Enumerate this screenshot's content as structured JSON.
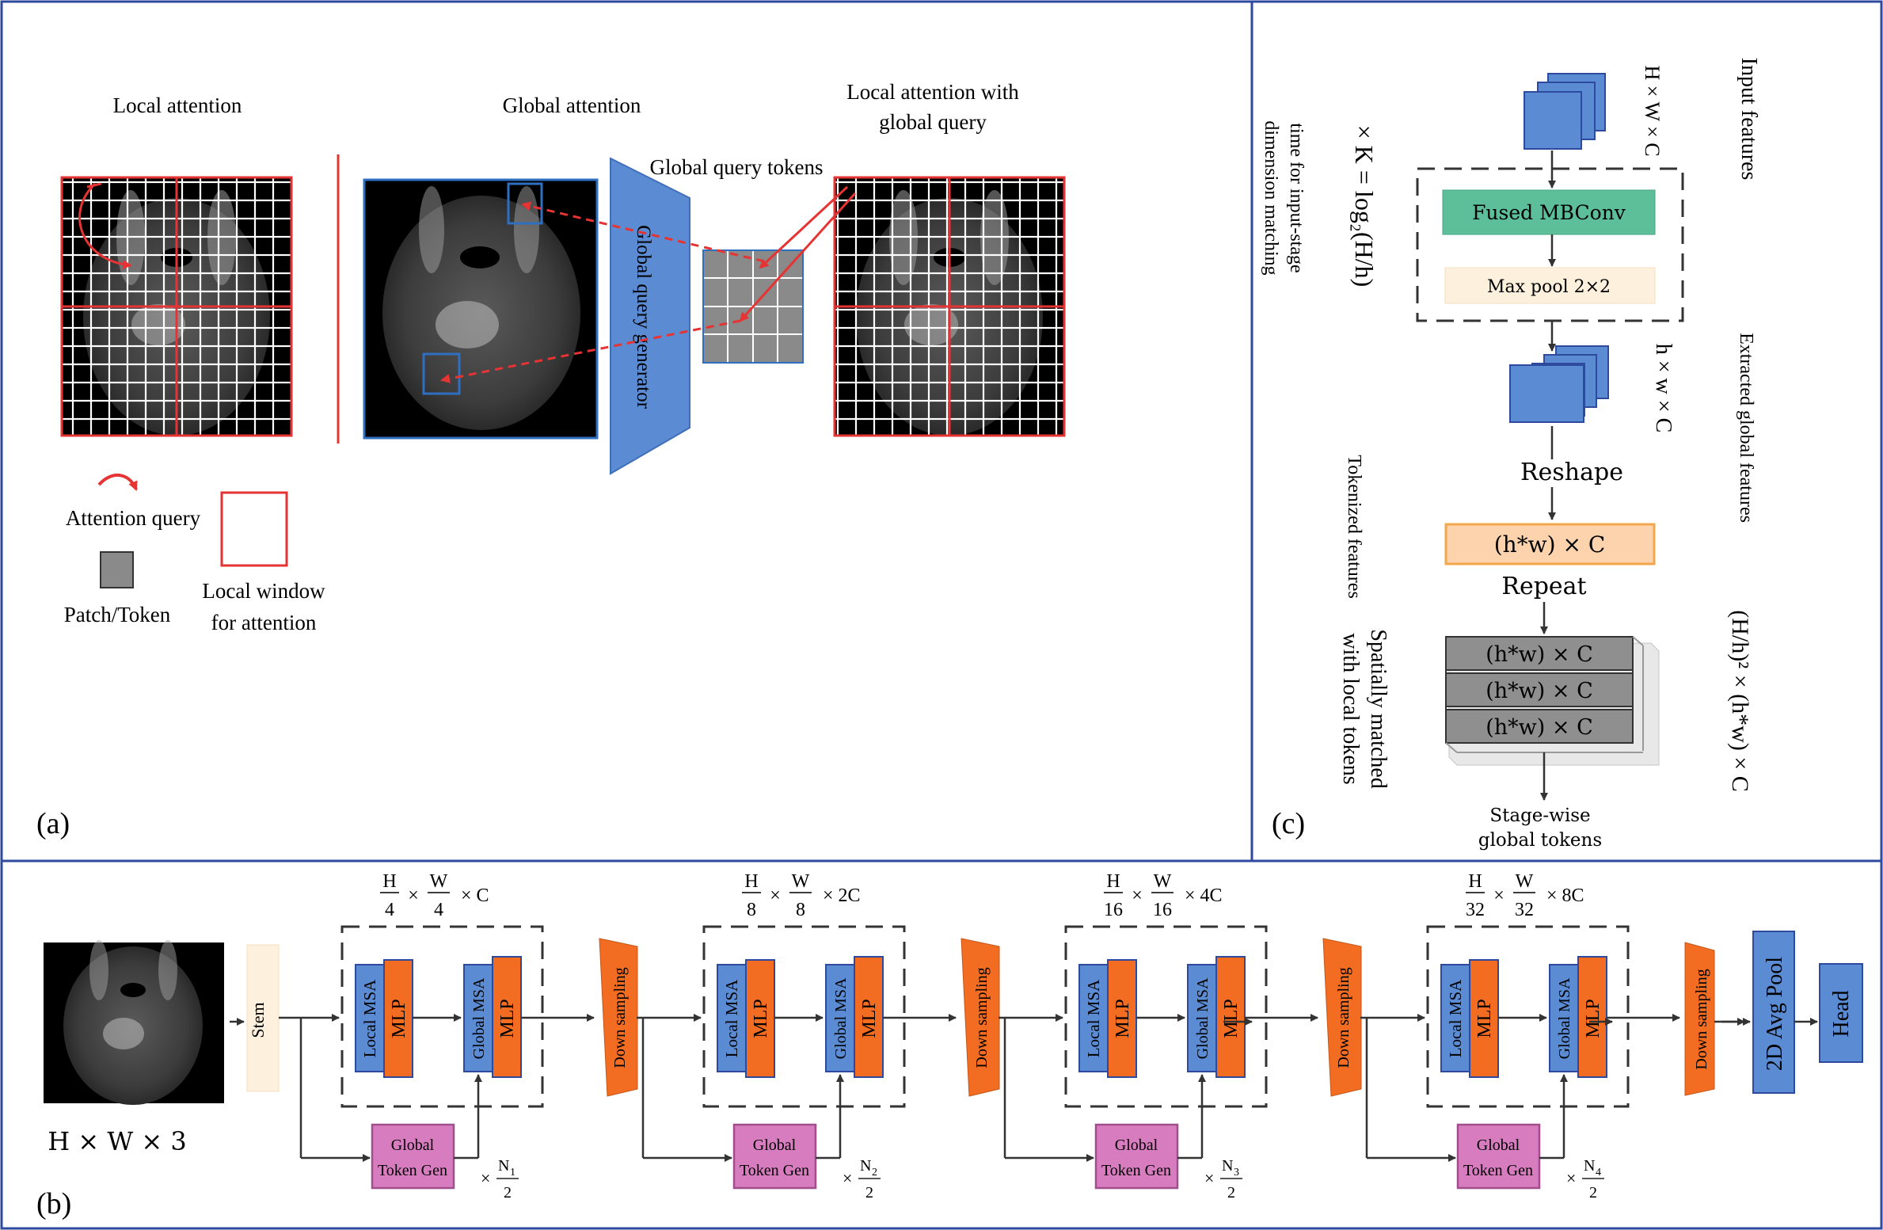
{
  "panel_a": {
    "tag": "(a)",
    "local_attention_title": "Local attention",
    "global_attention_title": "Global attention",
    "local_with_global_title_line1": "Local attention with",
    "local_with_global_title_line2": "global query",
    "global_query_tokens_label": "Global query tokens",
    "generator_label": "Global query generator",
    "legend_attention_query": "Attention query",
    "legend_patch_token": "Patch/Token",
    "legend_local_window_line1": "Local window",
    "legend_local_window_line2": "for attention"
  },
  "panel_c": {
    "tag": "(c)",
    "input_features_label": "Input features",
    "input_dims": "H × W × C",
    "fused_mbconv": "Fused MBConv",
    "max_pool": "Max pool 2×2",
    "k_formula": "× K = log₂(H/h)",
    "k_note_line1": "time for input-stage",
    "k_note_line2": "dimension matching",
    "extracted_dims": "h × w × C",
    "extracted_label": "Extracted global features",
    "reshape": "Reshape",
    "tokenized_label": "Tokenized features",
    "token_box": "(h*w) × C",
    "repeat": "Repeat",
    "repeat_dims": "(H/h)² × (h*w) × C",
    "stack_rows": [
      "(h*w) × C",
      "(h*w) × C",
      "(h*w) × C"
    ],
    "spatial_label_line1": "Spatially matched",
    "spatial_label_line2": "with local tokens",
    "stage_tokens_line1": "Stage-wise",
    "stage_tokens_line2": "global tokens"
  },
  "panel_b": {
    "tag": "(b)",
    "input_dims": "H × W × 3",
    "stem": "Stem",
    "local_msa": "Local MSA",
    "global_msa": "Global MSA",
    "mlp": "MLP",
    "down_sampling": "Down sampling",
    "token_gen_line1": "Global",
    "token_gen_line2": "Token Gen",
    "avg_pool": "2D Avg Pool",
    "head": "Head",
    "stages": [
      {
        "h_div": "4",
        "w_div": "4",
        "channels": "C",
        "repeat_sub": "1"
      },
      {
        "h_div": "8",
        "w_div": "8",
        "channels": "2C",
        "repeat_sub": "2"
      },
      {
        "h_div": "16",
        "w_div": "16",
        "channels": "4C",
        "repeat_sub": "3"
      },
      {
        "h_div": "32",
        "w_div": "32",
        "channels": "8C",
        "repeat_sub": "4"
      }
    ]
  },
  "colors": {
    "frame_blue": "#2e4a9e",
    "block_blue": "#5b8bd3",
    "mlp_orange": "#f26d21",
    "green": "#5cbf9a",
    "peach": "#fbe5c6",
    "pink": "#d77dbf",
    "grey": "#8a8a8a",
    "red": "#e63333"
  }
}
